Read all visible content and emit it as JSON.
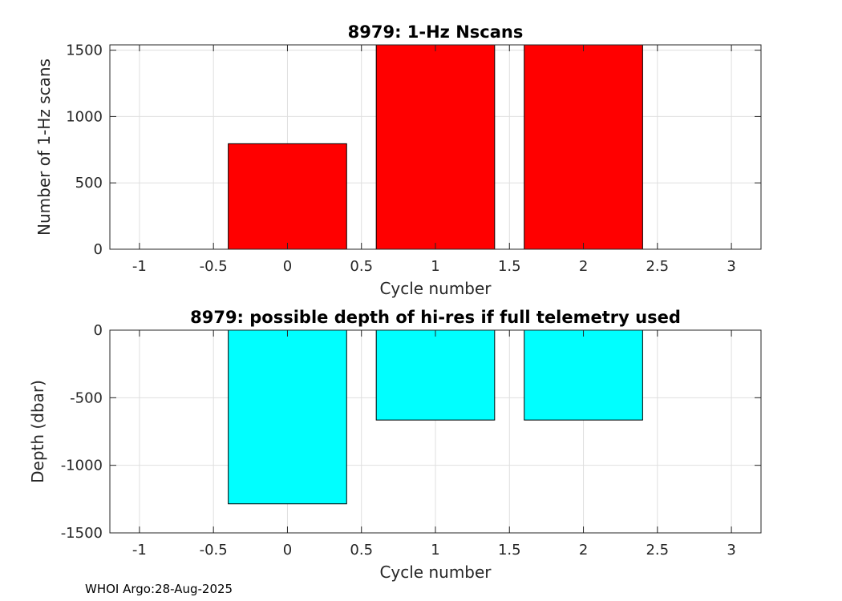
{
  "chart_data": [
    {
      "type": "bar",
      "title": "8979: 1-Hz Nscans",
      "xlabel": "Cycle number",
      "ylabel": "Number of 1-Hz scans",
      "x": [
        0,
        1,
        2
      ],
      "values": [
        795,
        1540,
        1540
      ],
      "bar_width": 0.8,
      "bar_color": "#ff0000",
      "xlim": [
        -1.2,
        3.2
      ],
      "ylim": [
        0,
        1540
      ],
      "xticks": [
        -1,
        -0.5,
        0,
        0.5,
        1,
        1.5,
        2,
        2.5,
        3
      ],
      "xticklabels": [
        "-1",
        "-0.5",
        "0",
        "0.5",
        "1",
        "1.5",
        "2",
        "2.5",
        "3"
      ],
      "yticks": [
        0,
        500,
        1000,
        1500
      ],
      "yticklabels": [
        "0",
        "500",
        "1000",
        "1500"
      ],
      "grid": true
    },
    {
      "type": "bar",
      "title": "8979: possible depth of hi-res if full telemetry used",
      "xlabel": "Cycle number",
      "ylabel": "Depth (dbar)",
      "x": [
        0,
        1,
        2
      ],
      "values": [
        -1285,
        -665,
        -665
      ],
      "bar_width": 0.8,
      "bar_color": "#00ffff",
      "xlim": [
        -1.2,
        3.2
      ],
      "ylim": [
        -1500,
        0
      ],
      "xticks": [
        -1,
        -0.5,
        0,
        0.5,
        1,
        1.5,
        2,
        2.5,
        3
      ],
      "xticklabels": [
        "-1",
        "-0.5",
        "0",
        "0.5",
        "1",
        "1.5",
        "2",
        "2.5",
        "3"
      ],
      "yticks": [
        -1500,
        -1000,
        -500,
        0
      ],
      "yticklabels": [
        "-1500",
        "-1000",
        "-500",
        "0"
      ],
      "grid": true
    }
  ],
  "footer": "WHOI Argo:28-Aug-2025"
}
